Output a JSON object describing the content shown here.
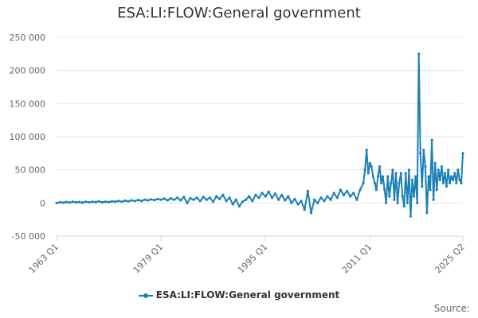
{
  "chart_data": {
    "type": "line",
    "title": "ESA:LI:FLOW:General government",
    "xlabel": "",
    "ylabel": "",
    "x_tick_labels": [
      "1963 Q1",
      "1979 Q1",
      "1995 Q1",
      "2011 Q1",
      "2025 Q2"
    ],
    "y_tick_labels": [
      "-50 000",
      "0",
      "50 000",
      "100 000",
      "150 000",
      "200 000",
      "250 000"
    ],
    "y_ticks": [
      -50000,
      0,
      50000,
      100000,
      150000,
      200000,
      250000
    ],
    "ylim": [
      -50000,
      250000
    ],
    "x_range": [
      "1963 Q1",
      "2025 Q2"
    ],
    "grid": "horizontal",
    "legend_position": "bottom-center",
    "series_color": "#1a80b6",
    "series": [
      {
        "name": "ESA:LI:FLOW:General government",
        "points": [
          [
            "1963 Q1",
            0
          ],
          [
            "1963 Q3",
            1000
          ],
          [
            "1964 Q1",
            500
          ],
          [
            "1964 Q3",
            1500
          ],
          [
            "1965 Q1",
            800
          ],
          [
            "1965 Q3",
            2000
          ],
          [
            "1966 Q1",
            1000
          ],
          [
            "1966 Q3",
            1500
          ],
          [
            "1967 Q1",
            500
          ],
          [
            "1967 Q3",
            1800
          ],
          [
            "1968 Q1",
            1000
          ],
          [
            "1968 Q3",
            2000
          ],
          [
            "1969 Q1",
            1500
          ],
          [
            "1969 Q3",
            2500
          ],
          [
            "1970 Q1",
            1000
          ],
          [
            "1970 Q3",
            2000
          ],
          [
            "1971 Q1",
            1500
          ],
          [
            "1971 Q3",
            2500
          ],
          [
            "1972 Q1",
            2000
          ],
          [
            "1972 Q3",
            3000
          ],
          [
            "1973 Q1",
            2000
          ],
          [
            "1973 Q3",
            3500
          ],
          [
            "1974 Q1",
            2500
          ],
          [
            "1974 Q3",
            4000
          ],
          [
            "1975 Q1",
            3000
          ],
          [
            "1975 Q3",
            4500
          ],
          [
            "1976 Q1",
            3000
          ],
          [
            "1976 Q3",
            5000
          ],
          [
            "1977 Q1",
            4000
          ],
          [
            "1977 Q3",
            5500
          ],
          [
            "1978 Q1",
            4500
          ],
          [
            "1978 Q3",
            6000
          ],
          [
            "1979 Q1",
            5000
          ],
          [
            "1979 Q3",
            6500
          ],
          [
            "1980 Q1",
            4000
          ],
          [
            "1980 Q3",
            7000
          ],
          [
            "1981 Q1",
            5000
          ],
          [
            "1981 Q3",
            8000
          ],
          [
            "1982 Q1",
            4000
          ],
          [
            "1982 Q3",
            9000
          ],
          [
            "1983 Q1",
            0
          ],
          [
            "1983 Q3",
            7000
          ],
          [
            "1984 Q1",
            5000
          ],
          [
            "1984 Q3",
            8000
          ],
          [
            "1985 Q1",
            3000
          ],
          [
            "1985 Q3",
            9000
          ],
          [
            "1986 Q1",
            5000
          ],
          [
            "1986 Q3",
            8000
          ],
          [
            "1987 Q1",
            2000
          ],
          [
            "1987 Q3",
            10000
          ],
          [
            "1988 Q1",
            6000
          ],
          [
            "1988 Q3",
            12000
          ],
          [
            "1989 Q1",
            3000
          ],
          [
            "1989 Q3",
            8000
          ],
          [
            "1990 Q1",
            -2000
          ],
          [
            "1990 Q3",
            5000
          ],
          [
            "1991 Q1",
            -5000
          ],
          [
            "1991 Q3",
            2000
          ],
          [
            "1992 Q1",
            5000
          ],
          [
            "1992 Q3",
            10000
          ],
          [
            "1993 Q1",
            3000
          ],
          [
            "1993 Q3",
            12000
          ],
          [
            "1994 Q1",
            8000
          ],
          [
            "1994 Q3",
            15000
          ],
          [
            "1995 Q1",
            10000
          ],
          [
            "1995 Q3",
            17000
          ],
          [
            "1996 Q1",
            8000
          ],
          [
            "1996 Q3",
            14000
          ],
          [
            "1997 Q1",
            5000
          ],
          [
            "1997 Q3",
            12000
          ],
          [
            "1998 Q1",
            4000
          ],
          [
            "1998 Q3",
            10000
          ],
          [
            "1999 Q1",
            0
          ],
          [
            "1999 Q3",
            6000
          ],
          [
            "2000 Q1",
            -2000
          ],
          [
            "2000 Q3",
            3000
          ],
          [
            "2001 Q1",
            -10000
          ],
          [
            "2001 Q3",
            18000
          ],
          [
            "2002 Q1",
            -15000
          ],
          [
            "2002 Q3",
            5000
          ],
          [
            "2003 Q1",
            0
          ],
          [
            "2003 Q3",
            8000
          ],
          [
            "2004 Q1",
            3000
          ],
          [
            "2004 Q3",
            10000
          ],
          [
            "2005 Q1",
            5000
          ],
          [
            "2005 Q3",
            15000
          ],
          [
            "2006 Q1",
            8000
          ],
          [
            "2006 Q3",
            20000
          ],
          [
            "2007 Q1",
            12000
          ],
          [
            "2007 Q3",
            18000
          ],
          [
            "2008 Q1",
            10000
          ],
          [
            "2008 Q3",
            15000
          ],
          [
            "2009 Q1",
            5000
          ],
          [
            "2009 Q3",
            20000
          ],
          [
            "2010 Q1",
            30000
          ],
          [
            "2010 Q2",
            50000
          ],
          [
            "2010 Q3",
            80000
          ],
          [
            "2010 Q4",
            45000
          ],
          [
            "2011 Q1",
            60000
          ],
          [
            "2011 Q2",
            55000
          ],
          [
            "2011 Q3",
            40000
          ],
          [
            "2011 Q4",
            30000
          ],
          [
            "2012 Q1",
            20000
          ],
          [
            "2012 Q2",
            40000
          ],
          [
            "2012 Q3",
            55000
          ],
          [
            "2012 Q4",
            30000
          ],
          [
            "2013 Q1",
            40000
          ],
          [
            "2013 Q2",
            20000
          ],
          [
            "2013 Q3",
            0
          ],
          [
            "2013 Q4",
            40000
          ],
          [
            "2014 Q1",
            10000
          ],
          [
            "2014 Q2",
            30000
          ],
          [
            "2014 Q3",
            50000
          ],
          [
            "2014 Q4",
            5000
          ],
          [
            "2015 Q1",
            45000
          ],
          [
            "2015 Q2",
            0
          ],
          [
            "2015 Q3",
            30000
          ],
          [
            "2015 Q4",
            45000
          ],
          [
            "2016 Q1",
            10000
          ],
          [
            "2016 Q2",
            -5000
          ],
          [
            "2016 Q3",
            45000
          ],
          [
            "2016 Q4",
            0
          ],
          [
            "2017 Q1",
            50000
          ],
          [
            "2017 Q2",
            -20000
          ],
          [
            "2017 Q3",
            35000
          ],
          [
            "2017 Q4",
            10000
          ],
          [
            "2018 Q1",
            40000
          ],
          [
            "2018 Q2",
            0
          ],
          [
            "2018 Q3",
            225000
          ],
          [
            "2018 Q4",
            75000
          ],
          [
            "2019 Q1",
            25000
          ],
          [
            "2019 Q2",
            80000
          ],
          [
            "2019 Q3",
            55000
          ],
          [
            "2019 Q4",
            -15000
          ],
          [
            "2020 Q1",
            40000
          ],
          [
            "2020 Q2",
            20000
          ],
          [
            "2020 Q3",
            95000
          ],
          [
            "2020 Q4",
            5000
          ],
          [
            "2021 Q1",
            60000
          ],
          [
            "2021 Q2",
            20000
          ],
          [
            "2021 Q3",
            50000
          ],
          [
            "2021 Q4",
            35000
          ],
          [
            "2022 Q1",
            55000
          ],
          [
            "2022 Q2",
            30000
          ],
          [
            "2022 Q3",
            45000
          ],
          [
            "2022 Q4",
            25000
          ],
          [
            "2023 Q1",
            50000
          ],
          [
            "2023 Q2",
            30000
          ],
          [
            "2023 Q3",
            40000
          ],
          [
            "2023 Q4",
            35000
          ],
          [
            "2024 Q1",
            45000
          ],
          [
            "2024 Q2",
            30000
          ],
          [
            "2024 Q3",
            50000
          ],
          [
            "2024 Q4",
            35000
          ],
          [
            "2025 Q1",
            30000
          ],
          [
            "2025 Q2",
            75000
          ]
        ]
      }
    ]
  },
  "footer": {
    "source_label": "Source:"
  }
}
